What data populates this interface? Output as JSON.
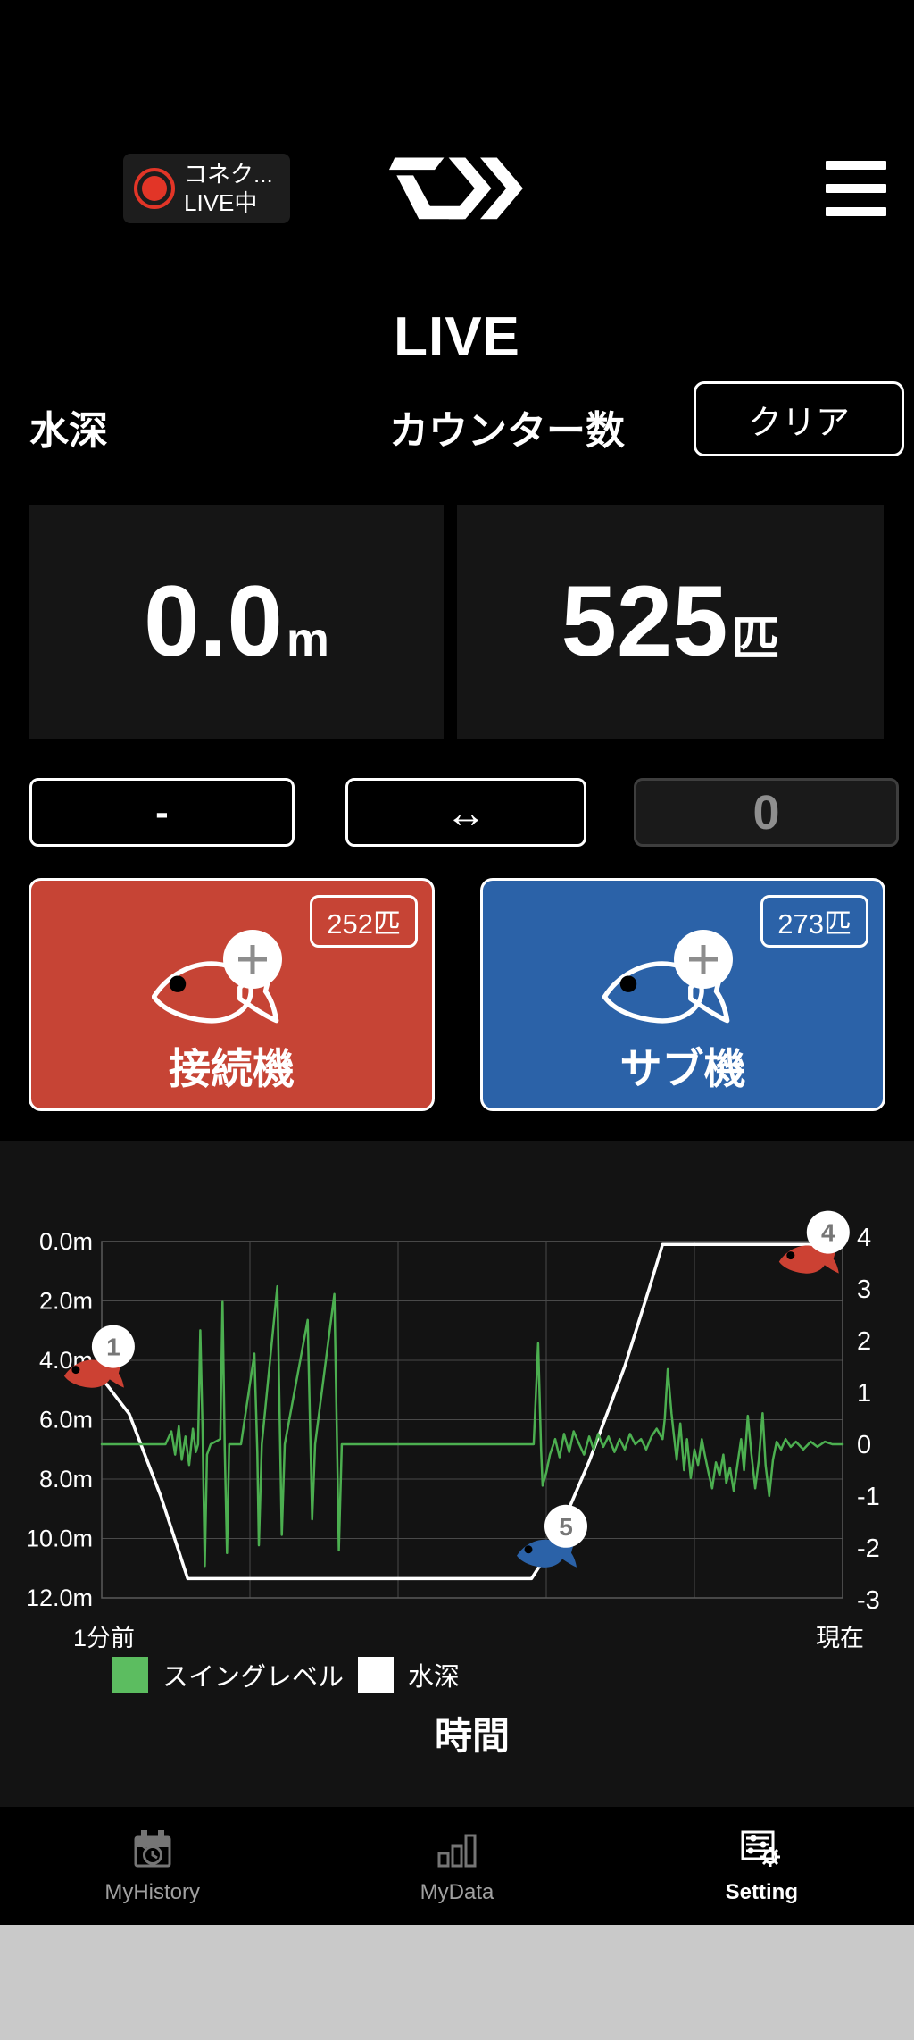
{
  "header": {
    "status": {
      "line1": "コネク...",
      "line2": "LIVE中",
      "record_color": "#e23527"
    }
  },
  "live_title": "LIVE",
  "labels": {
    "depth": "水深",
    "counter": "カウンター数"
  },
  "clear_button": "クリア",
  "depth_display": {
    "value": "0.0",
    "unit": "m"
  },
  "counter_display": {
    "value": "525",
    "unit": "匹"
  },
  "controls": {
    "minus": "-",
    "swap": "↔",
    "zero": "0"
  },
  "devices": [
    {
      "name": "接続機",
      "count_badge": "252匹",
      "color": "#c64435"
    },
    {
      "name": "サブ機",
      "count_badge": "273匹",
      "color": "#2b62a8"
    }
  ],
  "chart_data": {
    "type": "line",
    "x_axis": {
      "left_label": "1分前",
      "right_label": "現在",
      "title": "時間"
    },
    "y_axis_left": {
      "labels": [
        "0.0m",
        "2.0m",
        "4.0m",
        "6.0m",
        "8.0m",
        "10.0m",
        "12.0m"
      ],
      "range": [
        0,
        12
      ],
      "unit": "m"
    },
    "y_axis_right": {
      "labels": [
        "4",
        "3",
        "2",
        "1",
        "0",
        "-1",
        "-2",
        "-3"
      ],
      "range": [
        4,
        -3
      ]
    },
    "grid": true,
    "legend": [
      {
        "label": "スイングレベル",
        "color": "#5cbd60"
      },
      {
        "label": "水深",
        "color": "#ffffff"
      }
    ],
    "series": [
      {
        "name": "水深",
        "color": "#ffffff",
        "unit": "m",
        "axis": "left",
        "points": [
          [
            0,
            4.6
          ],
          [
            3.7,
            5.8
          ],
          [
            8.0,
            8.6
          ],
          [
            11.6,
            11.35
          ],
          [
            58.0,
            11.35
          ],
          [
            61.0,
            10.2
          ],
          [
            65.8,
            7.4
          ],
          [
            70.6,
            4.2
          ],
          [
            74.0,
            1.5
          ],
          [
            75.7,
            0.1
          ],
          [
            100,
            0.1
          ]
        ]
      },
      {
        "name": "スイングレベル",
        "color": "#4caf50",
        "axis": "right",
        "points": [
          [
            0,
            0
          ],
          [
            8.6,
            0
          ],
          [
            9.4,
            0.25
          ],
          [
            9.9,
            -0.2
          ],
          [
            10.4,
            0.35
          ],
          [
            10.8,
            -0.3
          ],
          [
            11.3,
            0.15
          ],
          [
            11.8,
            -0.4
          ],
          [
            12.3,
            0.3
          ],
          [
            12.7,
            -0.15
          ],
          [
            13.0,
            0
          ],
          [
            13.3,
            2.2
          ],
          [
            13.6,
            0.3
          ],
          [
            13.9,
            -2.35
          ],
          [
            14.2,
            -0.2
          ],
          [
            14.7,
            0
          ],
          [
            16.0,
            0.1
          ],
          [
            16.3,
            2.75
          ],
          [
            16.6,
            -0.1
          ],
          [
            16.9,
            -2.1
          ],
          [
            17.2,
            0
          ],
          [
            18.8,
            0
          ],
          [
            20.6,
            1.75
          ],
          [
            21.0,
            -0.15
          ],
          [
            21.2,
            -1.95
          ],
          [
            21.6,
            0
          ],
          [
            23.7,
            3.05
          ],
          [
            24.1,
            -0.1
          ],
          [
            24.3,
            -1.75
          ],
          [
            24.7,
            0
          ],
          [
            27.8,
            2.4
          ],
          [
            28.2,
            -0.2
          ],
          [
            28.4,
            -1.45
          ],
          [
            28.8,
            0
          ],
          [
            31.4,
            2.9
          ],
          [
            31.8,
            -0.3
          ],
          [
            32.0,
            -2.05
          ],
          [
            32.4,
            0
          ],
          [
            33.3,
            0
          ],
          [
            58.3,
            0
          ],
          [
            58.9,
            1.95
          ],
          [
            59.3,
            -0.1
          ],
          [
            59.5,
            -0.8
          ],
          [
            60.0,
            -0.55
          ],
          [
            60.5,
            -0.2
          ],
          [
            61.2,
            0.1
          ],
          [
            61.8,
            -0.25
          ],
          [
            62.4,
            0.2
          ],
          [
            63.1,
            -0.15
          ],
          [
            63.7,
            0.25
          ],
          [
            64.3,
            0.05
          ],
          [
            65.1,
            -0.2
          ],
          [
            65.8,
            0.15
          ],
          [
            66.4,
            -0.1
          ],
          [
            67.0,
            0.2
          ],
          [
            67.7,
            -0.05
          ],
          [
            68.4,
            0.15
          ],
          [
            69.2,
            -0.15
          ],
          [
            69.9,
            0.1
          ],
          [
            70.6,
            -0.1
          ],
          [
            71.3,
            0.2
          ],
          [
            72.0,
            0
          ],
          [
            72.8,
            0.1
          ],
          [
            73.5,
            -0.1
          ],
          [
            74.2,
            0.15
          ],
          [
            74.9,
            0.3
          ],
          [
            75.7,
            0.1
          ],
          [
            76.0,
            0.5
          ],
          [
            76.4,
            1.45
          ],
          [
            76.9,
            0.6
          ],
          [
            77.2,
            0.2
          ],
          [
            77.6,
            -0.3
          ],
          [
            78.1,
            0.4
          ],
          [
            78.6,
            -0.5
          ],
          [
            79.0,
            0.1
          ],
          [
            79.5,
            -0.65
          ],
          [
            80.0,
            -0.1
          ],
          [
            80.5,
            -0.4
          ],
          [
            81.0,
            0.1
          ],
          [
            81.4,
            -0.2
          ],
          [
            81.9,
            -0.55
          ],
          [
            82.4,
            -0.85
          ],
          [
            82.9,
            -0.35
          ],
          [
            83.4,
            -0.6
          ],
          [
            83.9,
            -0.2
          ],
          [
            84.3,
            -0.75
          ],
          [
            84.8,
            -0.45
          ],
          [
            85.3,
            -0.9
          ],
          [
            85.8,
            -0.4
          ],
          [
            86.3,
            0.1
          ],
          [
            86.7,
            -0.5
          ],
          [
            87.2,
            0.55
          ],
          [
            87.7,
            -0.2
          ],
          [
            88.2,
            -0.85
          ],
          [
            88.7,
            -0.3
          ],
          [
            89.2,
            0.6
          ],
          [
            89.6,
            -0.4
          ],
          [
            90.1,
            -1.0
          ],
          [
            90.6,
            -0.3
          ],
          [
            91.1,
            0.05
          ],
          [
            91.7,
            -0.1
          ],
          [
            92.3,
            0.1
          ],
          [
            93.0,
            -0.05
          ],
          [
            93.7,
            0.05
          ],
          [
            94.7,
            -0.1
          ],
          [
            95.7,
            0.05
          ],
          [
            96.6,
            -0.05
          ],
          [
            97.6,
            0.05
          ],
          [
            98.6,
            0
          ],
          [
            100,
            0
          ]
        ]
      }
    ],
    "markers": [
      {
        "label": "1",
        "color": "#cc4133",
        "x_pct": -1.1,
        "depth": 4.5
      },
      {
        "label": "5",
        "color": "#2b62a8",
        "x_pct": 60.0,
        "depth": 10.55
      },
      {
        "label": "4",
        "color": "#cc4133",
        "x_pct": 95.4,
        "depth": 0.65
      }
    ]
  },
  "nav": {
    "items": [
      {
        "label": "MyHistory",
        "icon": "history-calendar-icon",
        "active": false
      },
      {
        "label": "MyData",
        "icon": "bar-chart-icon",
        "active": false
      },
      {
        "label": "Setting",
        "icon": "settings-icon",
        "active": true
      }
    ]
  }
}
